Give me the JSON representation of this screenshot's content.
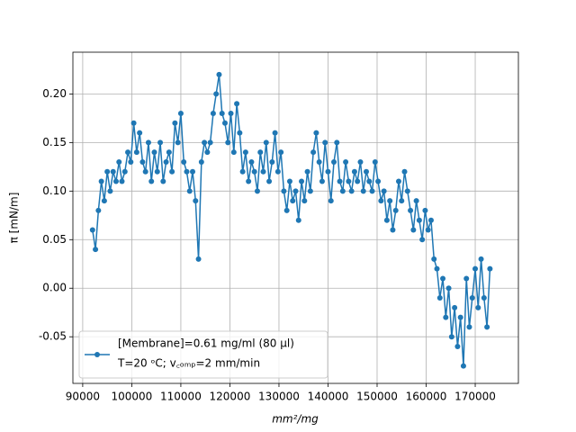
{
  "chart_data": {
    "type": "line",
    "xlabel": "mm²/mg",
    "ylabel": "π [mN/m]",
    "x": [
      92000,
      92600,
      93200,
      93800,
      94400,
      95000,
      95600,
      96200,
      96800,
      97400,
      98000,
      98600,
      99200,
      99800,
      100400,
      101000,
      101600,
      102200,
      102800,
      103400,
      104000,
      104600,
      105200,
      105800,
      106400,
      107000,
      107600,
      108200,
      108800,
      109400,
      110000,
      110600,
      111200,
      111800,
      112400,
      113000,
      113600,
      114200,
      114800,
      115400,
      116000,
      116600,
      117200,
      117800,
      118400,
      119000,
      119600,
      120200,
      120800,
      121400,
      122000,
      122600,
      123200,
      123800,
      124400,
      125000,
      125600,
      126200,
      126800,
      127400,
      128000,
      128600,
      129200,
      129800,
      130400,
      131000,
      131600,
      132200,
      132800,
      133400,
      134000,
      134600,
      135200,
      135800,
      136400,
      137000,
      137600,
      138200,
      138800,
      139400,
      140000,
      140600,
      141200,
      141800,
      142400,
      143000,
      143600,
      144200,
      144800,
      145400,
      146000,
      146600,
      147200,
      147800,
      148400,
      149000,
      149600,
      150200,
      150800,
      151400,
      152000,
      152600,
      153200,
      153800,
      154400,
      155000,
      155600,
      156200,
      156800,
      157400,
      158000,
      158600,
      159200,
      159800,
      160400,
      161000,
      161600,
      162200,
      162800,
      163400,
      164000,
      164600,
      165200,
      165800,
      166400,
      167000,
      167600,
      168200,
      168800,
      169400,
      170000,
      170600,
      171200,
      171800,
      172400,
      173000
    ],
    "series": [
      {
        "name": "[Membrane]=0.61 mg/ml (80 μl)",
        "note": "T=20 ᵒC; v꜀ₒₘₚ=2 mm/min",
        "color": "#1f77b4",
        "values": [
          0.06,
          0.04,
          0.08,
          0.11,
          0.09,
          0.12,
          0.1,
          0.12,
          0.11,
          0.13,
          0.11,
          0.12,
          0.14,
          0.13,
          0.17,
          0.14,
          0.16,
          0.13,
          0.12,
          0.15,
          0.11,
          0.14,
          0.12,
          0.15,
          0.11,
          0.13,
          0.14,
          0.12,
          0.17,
          0.15,
          0.18,
          0.13,
          0.12,
          0.1,
          0.12,
          0.09,
          0.03,
          0.13,
          0.15,
          0.14,
          0.15,
          0.18,
          0.2,
          0.22,
          0.18,
          0.17,
          0.15,
          0.18,
          0.14,
          0.19,
          0.16,
          0.12,
          0.14,
          0.11,
          0.13,
          0.12,
          0.1,
          0.14,
          0.12,
          0.15,
          0.11,
          0.13,
          0.16,
          0.12,
          0.14,
          0.1,
          0.08,
          0.11,
          0.09,
          0.1,
          0.07,
          0.11,
          0.09,
          0.12,
          0.1,
          0.14,
          0.16,
          0.13,
          0.11,
          0.15,
          0.12,
          0.09,
          0.13,
          0.15,
          0.11,
          0.1,
          0.13,
          0.11,
          0.1,
          0.12,
          0.11,
          0.13,
          0.1,
          0.12,
          0.11,
          0.1,
          0.13,
          0.11,
          0.09,
          0.1,
          0.07,
          0.09,
          0.06,
          0.08,
          0.11,
          0.09,
          0.12,
          0.1,
          0.08,
          0.06,
          0.09,
          0.07,
          0.05,
          0.08,
          0.06,
          0.07,
          0.03,
          0.02,
          -0.01,
          0.01,
          -0.03,
          0.0,
          -0.05,
          -0.02,
          -0.06,
          -0.03,
          -0.08,
          0.01,
          -0.04,
          -0.01,
          0.02,
          -0.02,
          0.03,
          -0.01,
          -0.04,
          0.02
        ]
      }
    ],
    "xlim": [
      88000,
      178800
    ],
    "ylim": [
      -0.098,
      0.243
    ],
    "xticks": [
      90000,
      100000,
      110000,
      120000,
      130000,
      140000,
      150000,
      160000,
      170000
    ],
    "yticks": [
      -0.05,
      {
        "value": 0.0,
        "label": "0.00"
      },
      0.05,
      {
        "value": 0.1,
        "label": "0.10"
      },
      0.15,
      {
        "value": 0.2,
        "label": "0.20"
      }
    ],
    "grid": true,
    "legend": "lower left"
  }
}
